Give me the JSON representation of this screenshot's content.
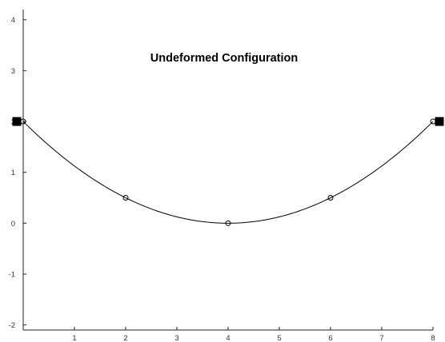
{
  "chart_data": {
    "type": "line",
    "title": "Undeformed Configuration",
    "xlabel": "",
    "ylabel": "",
    "xlim": [
      0,
      8
    ],
    "ylim": [
      -2.1,
      4.2
    ],
    "x_ticks": [
      1,
      2,
      3,
      4,
      5,
      6,
      7,
      8
    ],
    "y_ticks": [
      -2,
      -1,
      0,
      1,
      2,
      3,
      4
    ],
    "grid": false,
    "series": [
      {
        "values_formula": "y = (x - 4)^2 / 8",
        "x": [
          0,
          2,
          4,
          6,
          8
        ],
        "y": [
          2,
          0.5,
          0,
          0.5,
          2
        ],
        "marker": "circle",
        "color": "#000000"
      }
    ],
    "supports": [
      {
        "x": 0,
        "y": 2,
        "marker": "filled-square"
      },
      {
        "x": 8,
        "y": 2,
        "marker": "filled-square"
      }
    ]
  }
}
